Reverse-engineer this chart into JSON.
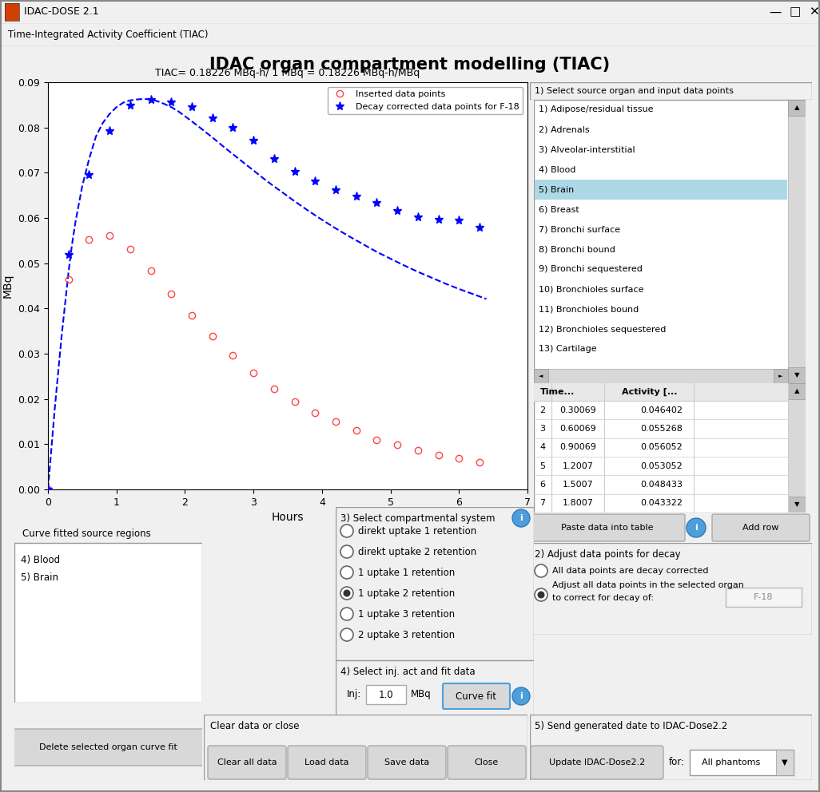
{
  "title_bar": "IDAC-DOSE 2.1",
  "subtitle_bar": "Time-Integrated Activity Coefficient (TIAC)",
  "main_title": "IDAC organ compartment modelling (TIAC)",
  "plot_title": "TIAC= 0.18226 MBq-h/ 1 MBq = 0.18226 MBq-h/MBq",
  "xlabel": "Hours",
  "ylabel": "MBq",
  "xlim": [
    0,
    7
  ],
  "ylim": [
    0,
    0.09
  ],
  "yticks": [
    0,
    0.01,
    0.02,
    0.03,
    0.04,
    0.05,
    0.06,
    0.07,
    0.08,
    0.09
  ],
  "xticks": [
    0,
    1,
    2,
    3,
    4,
    5,
    6,
    7
  ],
  "inserted_data_x": [
    0.0,
    0.30069,
    0.60069,
    0.90069,
    1.2007,
    1.5007,
    1.8007,
    2.1007,
    2.4007,
    2.7007,
    3.0007,
    3.3007,
    3.6007,
    3.9007,
    4.2007,
    4.5007,
    4.8007,
    5.1007,
    5.4007,
    5.7007,
    6.0007,
    6.3007
  ],
  "inserted_data_y": [
    0.0,
    0.046402,
    0.055268,
    0.056052,
    0.053052,
    0.048433,
    0.043322,
    0.0385,
    0.0338,
    0.0297,
    0.0257,
    0.0223,
    0.0195,
    0.017,
    0.015,
    0.013,
    0.011,
    0.0098,
    0.0087,
    0.0076,
    0.0068,
    0.006
  ],
  "decay_corrected_x": [
    0.0,
    0.30069,
    0.60069,
    0.90069,
    1.2007,
    1.5007,
    1.8007,
    2.1007,
    2.4007,
    2.7007,
    3.0007,
    3.3007,
    3.6007,
    3.9007,
    4.2007,
    4.5007,
    4.8007,
    5.1007,
    5.4007,
    5.7007,
    6.0007,
    6.3007
  ],
  "decay_corrected_y": [
    0.0,
    0.05193,
    0.06946,
    0.07929,
    0.08489,
    0.0861,
    0.08563,
    0.0845,
    0.0821,
    0.0799,
    0.0772,
    0.0731,
    0.0703,
    0.0682,
    0.0662,
    0.0647,
    0.0634,
    0.0616,
    0.0602,
    0.0596,
    0.0594,
    0.0579
  ],
  "curve_x": [
    0.0,
    0.05,
    0.1,
    0.15,
    0.2,
    0.25,
    0.3,
    0.35,
    0.4,
    0.5,
    0.6,
    0.7,
    0.8,
    0.9,
    1.0,
    1.1,
    1.2,
    1.3,
    1.4,
    1.5,
    1.6,
    1.7,
    1.8,
    1.9,
    2.0,
    2.2,
    2.4,
    2.6,
    2.8,
    3.0,
    3.2,
    3.4,
    3.6,
    3.8,
    4.0,
    4.2,
    4.4,
    4.6,
    4.8,
    5.0,
    5.2,
    5.4,
    5.6,
    5.8,
    6.0,
    6.2,
    6.4
  ],
  "curve_y": [
    0.0,
    0.009,
    0.018,
    0.026,
    0.034,
    0.041,
    0.048,
    0.054,
    0.059,
    0.067,
    0.073,
    0.078,
    0.081,
    0.083,
    0.0845,
    0.0855,
    0.086,
    0.0862,
    0.0863,
    0.0862,
    0.0858,
    0.0852,
    0.0845,
    0.0836,
    0.0825,
    0.0802,
    0.0778,
    0.0753,
    0.0729,
    0.0705,
    0.0681,
    0.0659,
    0.0637,
    0.0616,
    0.0596,
    0.0577,
    0.0559,
    0.0542,
    0.0525,
    0.051,
    0.0495,
    0.0481,
    0.0468,
    0.0455,
    0.0443,
    0.0432,
    0.0421
  ],
  "organ_list": [
    "1) Adipose/residual tissue",
    "2) Adrenals",
    "3) Alveolar-interstitial",
    "4) Blood",
    "5) Brain",
    "6) Breast",
    "7) Bronchi surface",
    "8) Bronchi bound",
    "9) Bronchi sequestered",
    "10) Bronchioles surface",
    "11) Bronchioles bound",
    "12) Bronchioles sequestered",
    "13) Cartilage"
  ],
  "selected_organ_idx": 4,
  "table_data": [
    [
      "2",
      "0.30069",
      "0.046402"
    ],
    [
      "3",
      "0.60069",
      "0.055268"
    ],
    [
      "4",
      "0.90069",
      "0.056052"
    ],
    [
      "5",
      "1.2007",
      "0.053052"
    ],
    [
      "6",
      "1.5007",
      "0.048433"
    ],
    [
      "7",
      "1.8007",
      "0.043322"
    ]
  ],
  "compartment_options": [
    "direkt uptake 1 retention",
    "direkt uptake 2 retention",
    "1 uptake 1 retention",
    "1 uptake 2 retention",
    "1 uptake 3 retention",
    "2 uptake 3 retention"
  ],
  "selected_compartment": 3,
  "curve_fitted_regions": [
    "4) Blood",
    "5) Brain"
  ],
  "inj_value": "1.0",
  "bg_color": "#f0f0f0",
  "plot_bg": "#ffffff",
  "selected_highlight": "#add8e6",
  "button_color": "#e0e0e0",
  "border_color": "#999999",
  "red_circle_color": "#ff4444",
  "blue_star_color": "#0000ff",
  "blue_curve_color": "#0000ff",
  "legend_label_1": "Inserted data points",
  "legend_label_2": "Decay corrected data points for F-18"
}
